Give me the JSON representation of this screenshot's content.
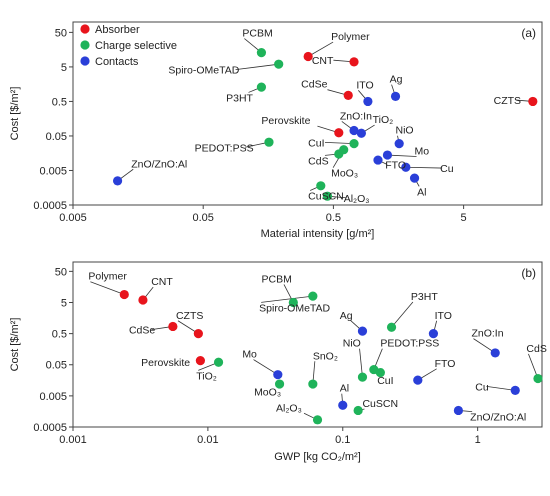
{
  "colors": {
    "absorber": "#e8141c",
    "charge_selective": "#1fb35a",
    "contacts": "#2a3fd8",
    "leader": "#333333"
  },
  "chart_data": [
    {
      "type": "scatter",
      "panel_label": "(a)",
      "xlabel": "Material intensity [g/m²]",
      "ylabel": "Cost [$/m²]",
      "xscale": "log",
      "yscale": "log",
      "xlim": [
        0.005,
        20
      ],
      "ylim": [
        0.0005,
        100
      ],
      "xticks": [
        {
          "v": 0.005,
          "label": "0.005"
        },
        {
          "v": 0.05,
          "label": "0.05"
        },
        {
          "v": 0.5,
          "label": "0.5"
        },
        {
          "v": 5,
          "label": "5"
        }
      ],
      "yticks": [
        {
          "v": 50,
          "label": "50"
        },
        {
          "v": 5,
          "label": "5"
        },
        {
          "v": 0.5,
          "label": "0.5"
        },
        {
          "v": 0.05,
          "label": "0.05"
        },
        {
          "v": 0.005,
          "label": "0.005"
        },
        {
          "v": 0.0005,
          "label": "0.0005"
        }
      ],
      "legend": [
        "Absorber",
        "Charge selective",
        "Contacts"
      ],
      "legend_position": "top-left",
      "series": [
        {
          "name": "Absorber",
          "points": [
            {
              "label": "Polymer",
              "x": 0.32,
              "y": 10,
              "lx": 0.48,
              "ly": 30,
              "anchor": "start"
            },
            {
              "label": "CNT",
              "x": 0.72,
              "y": 7,
              "lx": 0.5,
              "ly": 6,
              "anchor": "end"
            },
            {
              "label": "CdSe",
              "x": 0.65,
              "y": 0.75,
              "lx": 0.45,
              "ly": 1.25,
              "anchor": "end"
            },
            {
              "label": "Perovskite",
              "x": 0.55,
              "y": 0.062,
              "lx": 0.14,
              "ly": 0.11,
              "anchor": "start"
            },
            {
              "label": "CZTS",
              "x": 17,
              "y": 0.5,
              "lx": 8.5,
              "ly": 0.42,
              "anchor": "start"
            }
          ]
        },
        {
          "name": "Charge selective",
          "points": [
            {
              "label": "PCBM",
              "x": 0.14,
              "y": 13,
              "lx": 0.1,
              "ly": 38,
              "anchor": "start"
            },
            {
              "label": "Spiro-OMeTAD",
              "x": 0.19,
              "y": 6,
              "lx": 0.027,
              "ly": 3.2,
              "anchor": "start"
            },
            {
              "label": "P3HT",
              "x": 0.14,
              "y": 1.3,
              "lx": 0.075,
              "ly": 0.5,
              "anchor": "start"
            },
            {
              "label": "PEDOT:PSS",
              "x": 0.16,
              "y": 0.033,
              "lx": 0.043,
              "ly": 0.018,
              "anchor": "start"
            },
            {
              "label": "CuI",
              "x": 0.72,
              "y": 0.03,
              "lx": 0.32,
              "ly": 0.025,
              "anchor": "start"
            },
            {
              "label": "CdS",
              "x": 0.55,
              "y": 0.015,
              "lx": 0.32,
              "ly": 0.0075,
              "anchor": "start"
            },
            {
              "label": "MoO₃",
              "x": 0.6,
              "y": 0.02,
              "lx": 0.48,
              "ly": 0.0033,
              "anchor": "start"
            },
            {
              "label": "CuSCN",
              "x": 0.4,
              "y": 0.0018,
              "lx": 0.32,
              "ly": 0.00072,
              "anchor": "start"
            },
            {
              "label": "Al₂O₃",
              "x": 0.45,
              "y": 0.0009,
              "lx": 0.6,
              "ly": 0.00062,
              "anchor": "start"
            }
          ]
        },
        {
          "name": "Contacts",
          "points": [
            {
              "label": "Ag",
              "x": 1.5,
              "y": 0.7,
              "lx": 1.35,
              "ly": 1.75,
              "anchor": "start"
            },
            {
              "label": "ITO",
              "x": 0.92,
              "y": 0.5,
              "lx": 0.75,
              "ly": 1.2,
              "anchor": "start"
            },
            {
              "label": "ZnO:In",
              "x": 0.72,
              "y": 0.072,
              "lx": 0.56,
              "ly": 0.15,
              "anchor": "start"
            },
            {
              "label": "TiO₂",
              "x": 0.82,
              "y": 0.06,
              "lx": 1.0,
              "ly": 0.118,
              "anchor": "start"
            },
            {
              "label": "NiO",
              "x": 1.6,
              "y": 0.03,
              "lx": 1.5,
              "ly": 0.058,
              "anchor": "start"
            },
            {
              "label": "Mo",
              "x": 1.3,
              "y": 0.014,
              "lx": 2.1,
              "ly": 0.0145,
              "anchor": "start"
            },
            {
              "label": "FTO",
              "x": 1.1,
              "y": 0.01,
              "lx": 1.25,
              "ly": 0.0057,
              "anchor": "start"
            },
            {
              "label": "Cu",
              "x": 1.8,
              "y": 0.0062,
              "lx": 3.3,
              "ly": 0.0045,
              "anchor": "start"
            },
            {
              "label": "Al",
              "x": 2.1,
              "y": 0.003,
              "lx": 2.2,
              "ly": 0.00095,
              "anchor": "start"
            },
            {
              "label": "ZnO/ZnO:Al",
              "x": 0.011,
              "y": 0.0025,
              "lx": 0.014,
              "ly": 0.0062,
              "anchor": "start"
            }
          ]
        }
      ]
    },
    {
      "type": "scatter",
      "panel_label": "(b)",
      "xlabel": "GWP [kg CO₂/m²]",
      "ylabel": "Cost [$/m²]",
      "xscale": "log",
      "yscale": "log",
      "xlim": [
        0.001,
        3
      ],
      "ylim": [
        0.0005,
        100
      ],
      "xticks": [
        {
          "v": 0.001,
          "label": "0.001"
        },
        {
          "v": 0.01,
          "label": "0.01"
        },
        {
          "v": 0.1,
          "label": "0.1"
        },
        {
          "v": 1,
          "label": "1"
        }
      ],
      "yticks": [
        {
          "v": 50,
          "label": "50"
        },
        {
          "v": 5,
          "label": "5"
        },
        {
          "v": 0.5,
          "label": "0.5"
        },
        {
          "v": 0.05,
          "label": "0.05"
        },
        {
          "v": 0.005,
          "label": "0.005"
        },
        {
          "v": 0.0005,
          "label": "0.0005"
        }
      ],
      "series": [
        {
          "name": "Absorber",
          "points": [
            {
              "label": "Polymer",
              "x": 0.0024,
              "y": 9,
              "lx": 0.0013,
              "ly": 27,
              "anchor": "start"
            },
            {
              "label": "CNT",
              "x": 0.0033,
              "y": 6,
              "lx": 0.0038,
              "ly": 18,
              "anchor": "start"
            },
            {
              "label": "CZTS",
              "x": 0.0085,
              "y": 0.5,
              "lx": 0.0058,
              "ly": 1.5,
              "anchor": "start"
            },
            {
              "label": "CdSe",
              "x": 0.0055,
              "y": 0.85,
              "lx": 0.0026,
              "ly": 0.5,
              "anchor": "start"
            },
            {
              "label": "Perovskite",
              "x": 0.0088,
              "y": 0.068,
              "lx": 0.0032,
              "ly": 0.045,
              "anchor": "start"
            }
          ]
        },
        {
          "name": "Charge selective",
          "points": [
            {
              "label": "PCBM",
              "x": 0.043,
              "y": 5,
              "lx": 0.025,
              "ly": 22,
              "anchor": "start"
            },
            {
              "label": "Spiro-OMeTAD",
              "x": 0.06,
              "y": 8,
              "lx": 0.024,
              "ly": 2.6,
              "anchor": "start"
            },
            {
              "label": "TiO₂",
              "x": 0.012,
              "y": 0.06,
              "lx": 0.0082,
              "ly": 0.017,
              "anchor": "start"
            },
            {
              "label": "MoO₃",
              "x": 0.034,
              "y": 0.012,
              "lx": 0.022,
              "ly": 0.0052,
              "anchor": "start"
            },
            {
              "label": "SnO₂",
              "x": 0.06,
              "y": 0.012,
              "lx": 0.06,
              "ly": 0.075,
              "anchor": "start"
            },
            {
              "label": "Al₂O₃",
              "x": 0.065,
              "y": 0.00085,
              "lx": 0.032,
              "ly": 0.0016,
              "anchor": "start"
            },
            {
              "label": "NiO",
              "x": 0.14,
              "y": 0.02,
              "lx": 0.1,
              "ly": 0.19,
              "anchor": "start"
            },
            {
              "label": "CuI",
              "x": 0.19,
              "y": 0.028,
              "lx": 0.18,
              "ly": 0.012,
              "anchor": "start"
            },
            {
              "label": "PEDOT:PSS",
              "x": 0.17,
              "y": 0.035,
              "lx": 0.19,
              "ly": 0.19,
              "anchor": "start"
            },
            {
              "label": "P3HT",
              "x": 0.23,
              "y": 0.8,
              "lx": 0.32,
              "ly": 6.0,
              "anchor": "start"
            },
            {
              "label": "CuSCN",
              "x": 0.13,
              "y": 0.0017,
              "lx": 0.14,
              "ly": 0.0022,
              "anchor": "start"
            },
            {
              "label": "CdS",
              "x": 2.8,
              "y": 0.018,
              "lx": 2.3,
              "ly": 0.13,
              "anchor": "start"
            }
          ]
        },
        {
          "name": "Contacts",
          "points": [
            {
              "label": "Ag",
              "x": 0.14,
              "y": 0.6,
              "lx": 0.095,
              "ly": 1.5,
              "anchor": "start"
            },
            {
              "label": "ITO",
              "x": 0.47,
              "y": 0.5,
              "lx": 0.48,
              "ly": 1.5,
              "anchor": "start"
            },
            {
              "label": "Mo",
              "x": 0.033,
              "y": 0.024,
              "lx": 0.018,
              "ly": 0.085,
              "anchor": "start"
            },
            {
              "label": "Al",
              "x": 0.1,
              "y": 0.0025,
              "lx": 0.095,
              "ly": 0.0068,
              "anchor": "start"
            },
            {
              "label": "FTO",
              "x": 0.36,
              "y": 0.016,
              "lx": 0.48,
              "ly": 0.043,
              "anchor": "start"
            },
            {
              "label": "ZnO:In",
              "x": 1.35,
              "y": 0.12,
              "lx": 0.9,
              "ly": 0.4,
              "anchor": "start"
            },
            {
              "label": "Cu",
              "x": 1.9,
              "y": 0.0075,
              "lx": 0.96,
              "ly": 0.0075,
              "anchor": "start"
            },
            {
              "label": "ZnO/ZnO:Al",
              "x": 0.72,
              "y": 0.0017,
              "lx": 0.88,
              "ly": 0.0008,
              "anchor": "start"
            }
          ]
        }
      ]
    }
  ]
}
